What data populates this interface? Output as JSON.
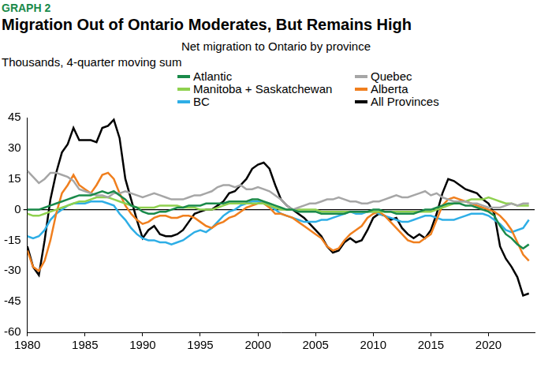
{
  "chart_data": {
    "type": "line",
    "caption": "GRAPH 2",
    "title": "Migration Out of Ontario Moderates, But Remains High",
    "subtitle": "Net migration to Ontario by province",
    "y_label": "Thousands, 4-quarter moving sum",
    "legend": "top",
    "grid": false,
    "xlim": [
      1980,
      2024
    ],
    "xticks": [
      1980,
      1985,
      1990,
      1995,
      2000,
      2005,
      2010,
      2015,
      2020
    ],
    "ylim": [
      -60,
      45
    ],
    "yticks": [
      -60,
      -45,
      -30,
      -15,
      0,
      15,
      30,
      45
    ],
    "x": [
      1980,
      1980.5,
      1981,
      1981.5,
      1982,
      1982.5,
      1983,
      1983.5,
      1984,
      1984.5,
      1985,
      1985.5,
      1986,
      1986.5,
      1987,
      1987.5,
      1988,
      1988.5,
      1989,
      1989.5,
      1990,
      1990.5,
      1991,
      1991.5,
      1992,
      1992.5,
      1993,
      1993.5,
      1994,
      1994.5,
      1995,
      1995.5,
      1996,
      1996.5,
      1997,
      1997.5,
      1998,
      1998.5,
      1999,
      1999.5,
      2000,
      2000.5,
      2001,
      2001.5,
      2002,
      2002.5,
      2003,
      2003.5,
      2004,
      2004.5,
      2005,
      2005.5,
      2006,
      2006.5,
      2007,
      2007.5,
      2008,
      2008.5,
      2009,
      2009.5,
      2010,
      2010.5,
      2011,
      2011.5,
      2012,
      2012.5,
      2013,
      2013.5,
      2014,
      2014.5,
      2015,
      2015.5,
      2016,
      2016.5,
      2017,
      2017.5,
      2018,
      2018.5,
      2019,
      2019.5,
      2020,
      2020.5,
      2021,
      2021.5,
      2022,
      2022.5,
      2023,
      2023.5
    ],
    "series": [
      {
        "name": "Atlantic",
        "color": "#1a8a4a",
        "values": [
          0,
          0,
          0,
          1,
          2,
          3,
          4,
          5,
          6,
          7,
          7,
          7,
          8,
          9,
          8,
          9,
          7,
          5,
          2,
          1,
          -1,
          -2,
          -2,
          -1,
          -1,
          0,
          1,
          1,
          2,
          2,
          2,
          3,
          3,
          3,
          3,
          4,
          4,
          4,
          4,
          5,
          5,
          4,
          3,
          2,
          1,
          0,
          0,
          -1,
          -1,
          -1,
          -1,
          -2,
          -2,
          -2,
          -2,
          -2,
          -1,
          -1,
          -1,
          -1,
          0,
          0,
          -1,
          -1,
          -2,
          -2,
          -2,
          -2,
          -1,
          0,
          0,
          1,
          2,
          3,
          3,
          3,
          2,
          2,
          1,
          0,
          -1,
          -3,
          -8,
          -12,
          -14,
          -17,
          -19,
          -17
        ]
      },
      {
        "name": "Quebec",
        "color": "#a6a6a6",
        "values": [
          19,
          16,
          13,
          15,
          18,
          18,
          17,
          16,
          14,
          10,
          9,
          8,
          7,
          7,
          6,
          8,
          8,
          9,
          8,
          7,
          6,
          7,
          8,
          7,
          6,
          5,
          5,
          5,
          6,
          7,
          7,
          8,
          9,
          11,
          12,
          12,
          11,
          12,
          10,
          10,
          11,
          10,
          9,
          7,
          5,
          2,
          0,
          1,
          2,
          3,
          3,
          4,
          5,
          5,
          6,
          5,
          4,
          4,
          3,
          3,
          4,
          4,
          5,
          6,
          7,
          6,
          6,
          7,
          8,
          9,
          7,
          8,
          6,
          5,
          4,
          4,
          4,
          3,
          3,
          2,
          1,
          1,
          1,
          2,
          3,
          2,
          3,
          3
        ]
      },
      {
        "name": "Manitoba + Saskatchewan",
        "color": "#8fd14f",
        "values": [
          -2,
          -3,
          -3,
          -2,
          -1,
          0,
          1,
          2,
          3,
          4,
          4,
          5,
          6,
          6,
          6,
          5,
          4,
          3,
          2,
          1,
          1,
          1,
          1,
          2,
          2,
          2,
          2,
          1,
          1,
          1,
          0,
          0,
          0,
          1,
          2,
          3,
          3,
          3,
          3,
          3,
          3,
          3,
          2,
          1,
          0,
          0,
          0,
          0,
          0,
          0,
          0,
          -1,
          -1,
          -1,
          -1,
          -1,
          -1,
          -1,
          -1,
          -1,
          -1,
          -1,
          -1,
          -1,
          -1,
          -1,
          -1,
          -1,
          -1,
          -1,
          -1,
          0,
          1,
          2,
          3,
          4,
          4,
          5,
          5,
          5,
          6,
          5,
          4,
          3,
          3,
          2,
          2,
          2
        ]
      },
      {
        "name": "Alberta",
        "color": "#f07f1e",
        "values": [
          -20,
          -28,
          -30,
          -25,
          -15,
          -2,
          8,
          12,
          17,
          12,
          10,
          8,
          12,
          17,
          18,
          15,
          8,
          2,
          -2,
          -5,
          -7,
          -6,
          -4,
          -3,
          -3,
          -4,
          -4,
          -3,
          -3,
          -4,
          -6,
          -8,
          -9,
          -7,
          -6,
          -4,
          -3,
          -1,
          1,
          2,
          3,
          3,
          1,
          -2,
          -2,
          -3,
          -4,
          -6,
          -8,
          -10,
          -12,
          -14,
          -18,
          -20,
          -19,
          -15,
          -12,
          -10,
          -8,
          -4,
          -2,
          -1,
          -3,
          -6,
          -9,
          -12,
          -15,
          -16,
          -16,
          -14,
          -12,
          -5,
          2,
          5,
          6,
          5,
          4,
          3,
          2,
          1,
          0,
          -1,
          -3,
          -6,
          -10,
          -16,
          -22,
          -25
        ]
      },
      {
        "name": "BC",
        "color": "#2eaee6",
        "values": [
          -13,
          -14,
          -13,
          -10,
          -5,
          -2,
          0,
          2,
          3,
          3,
          3,
          4,
          4,
          4,
          3,
          2,
          -2,
          -5,
          -9,
          -12,
          -14,
          -15,
          -15,
          -16,
          -16,
          -17,
          -16,
          -15,
          -13,
          -11,
          -10,
          -11,
          -9,
          -6,
          -3,
          -1,
          0,
          2,
          3,
          4,
          4,
          3,
          2,
          0,
          -2,
          -3,
          -4,
          -5,
          -6,
          -6,
          -6,
          -5,
          -5,
          -4,
          -3,
          -2,
          -1,
          -2,
          -2,
          -1,
          -1,
          -2,
          -3,
          -4,
          -5,
          -6,
          -6,
          -5,
          -4,
          -3,
          -3,
          -4,
          -5,
          -5,
          -5,
          -4,
          -3,
          -2,
          -2,
          -2,
          -3,
          -5,
          -7,
          -10,
          -11,
          -10,
          -9,
          -5
        ]
      },
      {
        "name": "All Provinces",
        "color": "#000000",
        "values": [
          -18,
          -28,
          -32,
          -15,
          5,
          18,
          28,
          32,
          40,
          34,
          34,
          34,
          33,
          40,
          41,
          44,
          35,
          15,
          5,
          -5,
          -14,
          -10,
          -8,
          -12,
          -13,
          -13,
          -12,
          -10,
          -6,
          -2,
          -1,
          0,
          0,
          2,
          4,
          8,
          9,
          12,
          15,
          20,
          22,
          23,
          20,
          12,
          5,
          2,
          0,
          -2,
          -4,
          -7,
          -10,
          -13,
          -18,
          -21,
          -20,
          -16,
          -14,
          -16,
          -15,
          -10,
          -4,
          -2,
          -3,
          -5,
          -4,
          -9,
          -12,
          -14,
          -12,
          -14,
          -10,
          -2,
          8,
          15,
          14,
          12,
          10,
          9,
          8,
          5,
          3,
          -2,
          -18,
          -24,
          -28,
          -33,
          -42,
          -41
        ]
      }
    ]
  }
}
